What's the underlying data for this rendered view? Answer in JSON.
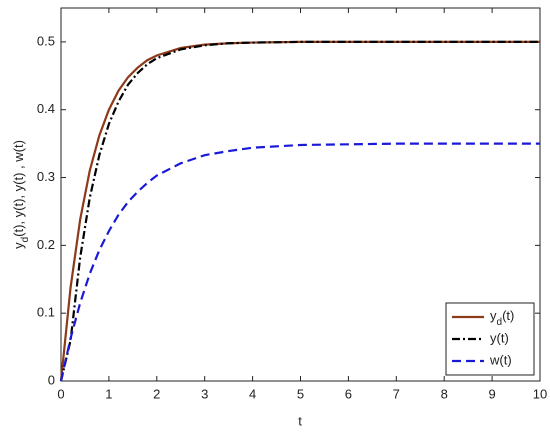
{
  "chart_data": {
    "type": "line",
    "xlabel": "t",
    "ylabel": [
      {
        "text": "y"
      },
      {
        "text": "d",
        "sub": true
      },
      {
        "text": "(t), y(t), y(t) , w(t)"
      }
    ],
    "x": [
      0,
      0.2,
      0.4,
      0.6,
      0.8,
      1.0,
      1.2,
      1.4,
      1.6,
      1.8,
      2.0,
      2.5,
      3.0,
      3.5,
      4.0,
      5,
      6,
      7,
      8,
      9,
      10
    ],
    "series": [
      {
        "name": [
          {
            "text": "y"
          },
          {
            "text": "d",
            "sub": true
          },
          {
            "text": "(t)"
          }
        ],
        "color": "#8b3a1a",
        "dash": "solid",
        "values": [
          0,
          0.138,
          0.238,
          0.31,
          0.362,
          0.4,
          0.428,
          0.448,
          0.462,
          0.473,
          0.48,
          0.491,
          0.496,
          0.498,
          0.499,
          0.5,
          0.5,
          0.5,
          0.5,
          0.5,
          0.5
        ]
      },
      {
        "name": "y(t)",
        "color": "#000000",
        "dash": "dashdot",
        "values": [
          0,
          0.06,
          0.182,
          0.27,
          0.333,
          0.379,
          0.412,
          0.437,
          0.454,
          0.467,
          0.476,
          0.489,
          0.495,
          0.498,
          0.499,
          0.5,
          0.5,
          0.5,
          0.5,
          0.5,
          0.5
        ]
      },
      {
        "name": "w(t)",
        "color": "#1a1ad6",
        "dash": "dashed",
        "values": [
          0,
          0.063,
          0.115,
          0.158,
          0.193,
          0.221,
          0.245,
          0.264,
          0.279,
          0.292,
          0.303,
          0.321,
          0.333,
          0.339,
          0.344,
          0.348,
          0.349,
          0.35,
          0.35,
          0.35,
          0.35
        ]
      }
    ],
    "xlim": [
      0,
      10
    ],
    "xticks": [
      0,
      1,
      2,
      3,
      4,
      5,
      6,
      7,
      8,
      9,
      10
    ],
    "ylim": [
      0,
      0.55
    ],
    "yticks": [
      0,
      0.1,
      0.2,
      0.3,
      0.4,
      0.5
    ],
    "grid": false,
    "legend": "lower right"
  }
}
